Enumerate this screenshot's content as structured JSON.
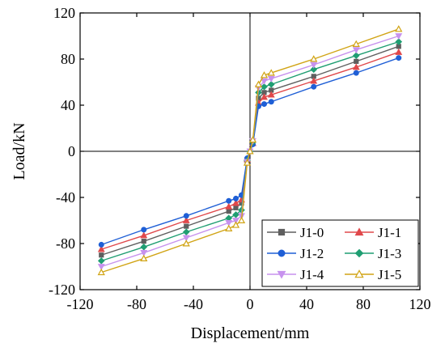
{
  "chart_data": {
    "type": "line",
    "xlabel": "Displacement/mm",
    "ylabel": "Load/kN",
    "xlim": [
      -120,
      120
    ],
    "ylim": [
      -120,
      120
    ],
    "xticks": [
      -120,
      -80,
      -40,
      0,
      40,
      80,
      120
    ],
    "yticks": [
      -120,
      -80,
      -40,
      0,
      40,
      80,
      120
    ],
    "xtick_labels": [
      "-120",
      "-80",
      "-40",
      "0",
      "40",
      "80",
      "120"
    ],
    "ytick_labels": [
      "-120",
      "-80",
      "-40",
      "0",
      "40",
      "80",
      "120"
    ],
    "zero_lines": true,
    "legend_position": "bottom-right",
    "series": [
      {
        "name": "J1-0",
        "color": "#5f5f5f",
        "marker": "square",
        "x": [
          -105,
          -75,
          -45,
          -15,
          -10,
          -6,
          -2,
          0,
          2,
          6,
          10,
          15,
          45,
          75,
          105
        ],
        "y": [
          -90,
          -78,
          -65,
          -52,
          -49,
          -45,
          -8,
          0,
          8,
          46,
          51,
          53,
          65,
          78,
          91
        ]
      },
      {
        "name": "J1-1",
        "color": "#e0484b",
        "marker": "triangle-up",
        "x": [
          -105,
          -75,
          -45,
          -15,
          -10,
          -6,
          -2,
          0,
          2,
          6,
          10,
          15,
          45,
          75,
          105
        ],
        "y": [
          -85,
          -73,
          -60,
          -48,
          -45,
          -42,
          -7,
          0,
          7,
          42,
          47,
          49,
          61,
          73,
          86
        ]
      },
      {
        "name": "J1-2",
        "color": "#1f5fd6",
        "marker": "circle",
        "x": [
          -105,
          -75,
          -45,
          -15,
          -10,
          -6,
          -2,
          0,
          2,
          6,
          10,
          15,
          45,
          75,
          105
        ],
        "y": [
          -81,
          -68,
          -56,
          -43,
          -41,
          -38,
          -6,
          0,
          6,
          39,
          41,
          43,
          56,
          68,
          81
        ]
      },
      {
        "name": "J1-3",
        "color": "#1f9e72",
        "marker": "diamond",
        "x": [
          -105,
          -75,
          -45,
          -15,
          -10,
          -6,
          -2,
          0,
          2,
          6,
          10,
          15,
          45,
          75,
          105
        ],
        "y": [
          -95,
          -83,
          -70,
          -58,
          -55,
          -51,
          -8,
          0,
          8,
          51,
          56,
          58,
          71,
          83,
          95
        ]
      },
      {
        "name": "J1-4",
        "color": "#c792ee",
        "marker": "triangle-down",
        "x": [
          -105,
          -75,
          -45,
          -15,
          -10,
          -6,
          -2,
          0,
          2,
          6,
          10,
          15,
          45,
          75,
          105
        ],
        "y": [
          -100,
          -88,
          -75,
          -62,
          -60,
          -56,
          -9,
          0,
          9,
          55,
          61,
          63,
          75,
          88,
          100
        ]
      },
      {
        "name": "J1-5",
        "color": "#d1a415",
        "marker": "triangle-up-open",
        "x": [
          -105,
          -75,
          -45,
          -15,
          -10,
          -6,
          -2,
          0,
          2,
          6,
          10,
          15,
          45,
          75,
          105
        ],
        "y": [
          -105,
          -93,
          -80,
          -67,
          -64,
          -60,
          -10,
          0,
          10,
          58,
          66,
          68,
          80,
          93,
          106
        ]
      }
    ]
  }
}
